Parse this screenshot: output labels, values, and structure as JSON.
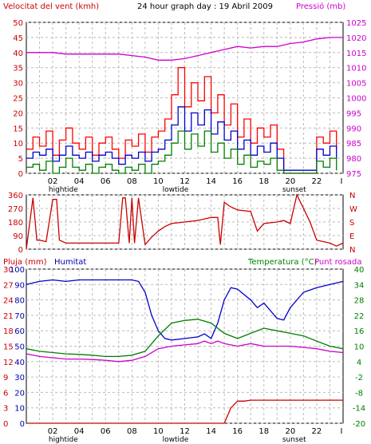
{
  "header": {
    "left_title": "Velocitat del vent (kmh)",
    "center_title": "24 hour graph day : 19 Abril 2009",
    "right_title": "Pressió (mb)"
  },
  "colors": {
    "wind_gust": "#ff0000",
    "wind_avg": "#0000cc",
    "wind_min": "#008000",
    "pressure": "#cc00cc",
    "direction": "#cc0000",
    "humidity": "#0000cc",
    "temperature": "#008000",
    "dewpoint": "#cc00cc",
    "rain": "#cc0000"
  },
  "x_axis": {
    "ticks": [
      "02",
      "04",
      "06",
      "08",
      "10",
      "12",
      "14",
      "16",
      "18",
      "20",
      "22",
      "I"
    ],
    "annotations": [
      {
        "label": "hightide",
        "hour": 2.8
      },
      {
        "label": "lowtide",
        "hour": 11.3
      },
      {
        "label": "sunset",
        "hour": 20.3
      }
    ]
  },
  "chart_data": [
    {
      "type": "line",
      "title": "Velocitat del vent (kmh) / Pressió (mb)",
      "x_label": "hour",
      "y_left": {
        "label": "Velocitat del vent (kmh)",
        "min": 0,
        "max": 50,
        "ticks": [
          0,
          5,
          10,
          15,
          20,
          25,
          30,
          35,
          40,
          45,
          50
        ]
      },
      "y_right": {
        "label": "Pressió (mb)",
        "min": 975,
        "max": 1025,
        "ticks": [
          975,
          980,
          985,
          990,
          995,
          1000,
          1005,
          1010,
          1015,
          1020,
          1025
        ]
      },
      "series": [
        {
          "name": "gust",
          "axis": "left",
          "x": [
            0,
            0.5,
            1,
            1.5,
            2,
            2.5,
            3,
            3.5,
            4,
            4.5,
            5,
            5.5,
            6,
            6.5,
            7,
            7.5,
            8,
            8.5,
            9,
            9.5,
            10,
            10.5,
            11,
            11.5,
            12,
            12.5,
            13,
            13.5,
            14,
            14.5,
            15,
            15.5,
            16,
            16.5,
            17,
            17.5,
            18,
            18.5,
            19,
            19.5,
            20,
            20.5,
            21,
            21.5,
            22,
            22.5,
            23,
            23.5
          ],
          "y": [
            8,
            12,
            9,
            14,
            6,
            11,
            15,
            10,
            8,
            12,
            6,
            10,
            12,
            8,
            5,
            11,
            9,
            13,
            7,
            12,
            14,
            18,
            26,
            35,
            22,
            30,
            24,
            32,
            20,
            26,
            16,
            23,
            12,
            18,
            10,
            15,
            12,
            16,
            8,
            0,
            0,
            0,
            0,
            0,
            12,
            10,
            14,
            8
          ]
        },
        {
          "name": "average",
          "axis": "left",
          "x": [
            0,
            0.5,
            1,
            1.5,
            2,
            2.5,
            3,
            3.5,
            4,
            4.5,
            5,
            5.5,
            6,
            6.5,
            7,
            7.5,
            8,
            8.5,
            9,
            9.5,
            10,
            10.5,
            11,
            11.5,
            12,
            12.5,
            13,
            13.5,
            14,
            14.5,
            15,
            15.5,
            16,
            16.5,
            17,
            17.5,
            18,
            18.5,
            19,
            19.5,
            20,
            20.5,
            21,
            21.5,
            22,
            22.5,
            23,
            23.5
          ],
          "y": [
            5,
            7,
            6,
            8,
            4,
            6,
            9,
            6,
            5,
            7,
            4,
            6,
            7,
            5,
            3,
            6,
            5,
            7,
            4,
            7,
            8,
            11,
            16,
            22,
            14,
            20,
            16,
            21,
            13,
            17,
            11,
            14,
            8,
            11,
            6,
            9,
            7,
            10,
            5,
            1,
            1,
            1,
            1,
            1,
            8,
            6,
            9,
            5
          ]
        },
        {
          "name": "minimum",
          "axis": "left",
          "x": [
            0,
            0.5,
            1,
            1.5,
            2,
            2.5,
            3,
            3.5,
            4,
            4.5,
            5,
            5.5,
            6,
            6.5,
            7,
            7.5,
            8,
            8.5,
            9,
            9.5,
            10,
            10.5,
            11,
            11.5,
            12,
            12.5,
            13,
            13.5,
            14,
            14.5,
            15,
            15.5,
            16,
            16.5,
            17,
            17.5,
            18,
            18.5,
            19,
            19.5,
            20,
            20.5,
            21,
            21.5,
            22,
            22.5,
            23,
            23.5
          ],
          "y": [
            2,
            3,
            1,
            4,
            0,
            2,
            5,
            2,
            1,
            3,
            0,
            2,
            3,
            1,
            0,
            2,
            1,
            3,
            0,
            3,
            4,
            6,
            10,
            14,
            8,
            13,
            9,
            14,
            7,
            10,
            5,
            8,
            3,
            6,
            2,
            4,
            3,
            5,
            1,
            0,
            0,
            0,
            0,
            0,
            4,
            2,
            5,
            1
          ]
        },
        {
          "name": "pressure",
          "axis": "right",
          "x": [
            0,
            1,
            2,
            3,
            4,
            5,
            6,
            7,
            8,
            9,
            10,
            11,
            12,
            13,
            14,
            15,
            16,
            17,
            18,
            19,
            20,
            21,
            22,
            23,
            24
          ],
          "y": [
            1015,
            1015,
            1015,
            1014.5,
            1014.5,
            1014.5,
            1014.5,
            1014.5,
            1014,
            1013.5,
            1012.5,
            1012.5,
            1013,
            1014,
            1015,
            1016,
            1017,
            1016.5,
            1017,
            1017,
            1018,
            1018.5,
            1019.5,
            1020,
            1020
          ]
        }
      ]
    },
    {
      "type": "line",
      "title": "Direcció del vent",
      "y_left": {
        "min": 0,
        "max": 360,
        "ticks": [
          0,
          90,
          180,
          270,
          360
        ]
      },
      "y_right_labels": [
        "N",
        "W",
        "S",
        "E",
        "N"
      ],
      "series": [
        {
          "name": "direction",
          "x": [
            0,
            0.5,
            0.8,
            1,
            1.5,
            2,
            2.3,
            2.5,
            3,
            3.5,
            4,
            5,
            6,
            7,
            7.3,
            7.5,
            7.8,
            8,
            8.2,
            8.5,
            9,
            9.5,
            10,
            10.5,
            11,
            12,
            13,
            14,
            14.5,
            14.7,
            15,
            15.5,
            16,
            17,
            17.5,
            18,
            19,
            19.5,
            20,
            20.5,
            21,
            21.5,
            22,
            23,
            23.5,
            24
          ],
          "y": [
            0,
            340,
            60,
            60,
            50,
            330,
            330,
            60,
            40,
            40,
            40,
            40,
            40,
            40,
            340,
            340,
            40,
            340,
            40,
            340,
            30,
            80,
            120,
            150,
            170,
            180,
            190,
            210,
            210,
            30,
            310,
            280,
            260,
            250,
            120,
            170,
            180,
            190,
            170,
            360,
            270,
            180,
            60,
            40,
            20,
            40
          ]
        }
      ]
    },
    {
      "type": "line",
      "title": "Pluja (mm) / Humitat / Temperatura (°C) / Punt rosada",
      "y_left_outer": {
        "label": "Pluja (mm)",
        "min": 0,
        "max": 30,
        "ticks": [
          0,
          3,
          6,
          9,
          12,
          15,
          18,
          21,
          24,
          27,
          30
        ]
      },
      "y_left_inner": {
        "label": "Humitat",
        "min": 0,
        "max": 100,
        "ticks": [
          0,
          10,
          20,
          30,
          40,
          50,
          60,
          70,
          80,
          90,
          100
        ]
      },
      "y_right": {
        "label": "Temperatura (°C)",
        "min": -20,
        "max": 40,
        "ticks": [
          -20,
          -14,
          -8,
          -2,
          4,
          10,
          16,
          22,
          28,
          34,
          40
        ]
      },
      "series": [
        {
          "name": "Humitat",
          "axis": "humidity",
          "x": [
            0,
            1,
            2,
            3,
            4,
            5,
            6,
            7,
            8,
            8.5,
            9,
            9.5,
            10,
            10.5,
            11,
            12,
            13,
            13.5,
            14,
            14.5,
            15,
            15.5,
            16,
            17,
            17.5,
            18,
            19,
            19.5,
            20,
            21,
            22,
            23,
            24
          ],
          "y": [
            90,
            92,
            93,
            92,
            93,
            93,
            93,
            93,
            93,
            92,
            85,
            70,
            60,
            55,
            54,
            55,
            56,
            58,
            55,
            65,
            80,
            88,
            87,
            80,
            75,
            78,
            68,
            67,
            75,
            85,
            88,
            90,
            92
          ]
        },
        {
          "name": "Temperatura (°C)",
          "axis": "temperature",
          "x": [
            0,
            1,
            2,
            3,
            4,
            5,
            6,
            7,
            8,
            9,
            10,
            11,
            12,
            13,
            14,
            15,
            16,
            17,
            18,
            19,
            20,
            21,
            22,
            23,
            24
          ],
          "y": [
            9,
            8,
            7.5,
            7,
            6.8,
            6.5,
            6,
            6,
            6.5,
            8,
            14,
            19,
            20,
            20.5,
            19,
            15,
            13,
            15,
            17,
            16,
            15,
            14,
            12,
            10,
            9
          ]
        },
        {
          "name": "Punt rosada",
          "axis": "temperature",
          "x": [
            0,
            1,
            2,
            3,
            4,
            5,
            6,
            7,
            8,
            9,
            10,
            11,
            12,
            13,
            13.5,
            14,
            14.5,
            15,
            16,
            17,
            18,
            19,
            20,
            21,
            22,
            23,
            24
          ],
          "y": [
            7,
            6,
            5.5,
            5,
            5,
            4.8,
            4.5,
            4,
            4.5,
            6,
            9,
            10,
            10.5,
            11,
            12,
            11,
            12,
            11,
            10,
            11,
            10,
            10,
            10,
            9.5,
            9,
            8,
            7.5
          ]
        },
        {
          "name": "Pluja (mm)",
          "axis": "rain",
          "x": [
            0,
            14.5,
            15,
            15.5,
            16,
            16.5,
            17,
            24
          ],
          "y": [
            0,
            0,
            0,
            3,
            4.3,
            4.3,
            4.5,
            4.5
          ]
        }
      ]
    }
  ],
  "panel3_labels": {
    "rain": "Pluja (mm)",
    "humidity": "Humitat",
    "temperature": "Temperatura (°C)",
    "dewpoint": "Punt rosada"
  }
}
